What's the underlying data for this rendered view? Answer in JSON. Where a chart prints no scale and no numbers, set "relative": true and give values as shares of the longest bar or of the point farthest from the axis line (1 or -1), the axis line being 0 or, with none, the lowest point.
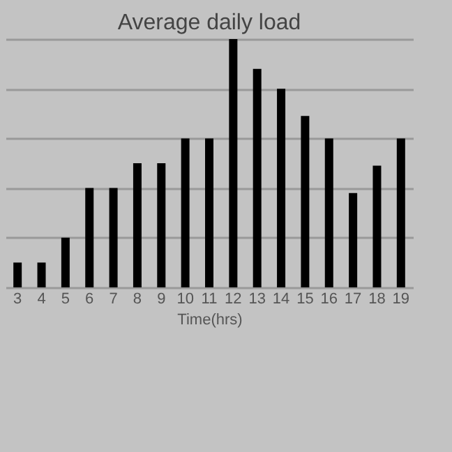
{
  "chart_data": {
    "type": "bar",
    "title": "Average daily load",
    "xlabel": "Time(hrs)",
    "relative": true,
    "grid": "y",
    "color": "#000000",
    "categories": [
      "3",
      "4",
      "5",
      "6",
      "7",
      "8",
      "9",
      "10",
      "11",
      "12",
      "13",
      "14",
      "15",
      "16",
      "17",
      "18",
      "19"
    ],
    "values": [
      0.1,
      0.1,
      0.2,
      0.4,
      0.4,
      0.5,
      0.5,
      0.6,
      0.6,
      1,
      0.88,
      0.8,
      0.69,
      0.6,
      0.38,
      0.49,
      0.6
    ]
  }
}
